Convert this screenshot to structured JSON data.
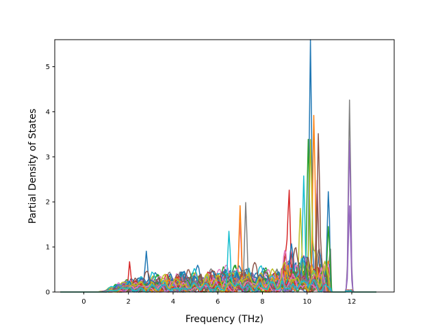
{
  "chart_data": {
    "type": "line",
    "title": "",
    "xlabel": "Frequency (THz)",
    "ylabel": "Partial Density of States",
    "xlim": [
      -1.3,
      13.9
    ],
    "ylim": [
      0,
      5.6
    ],
    "xticks": [
      0,
      2,
      4,
      6,
      8,
      10,
      12
    ],
    "yticks": [
      0,
      1,
      2,
      3,
      4,
      5
    ],
    "grid": false,
    "legend": "none",
    "series_count": 40,
    "colors": [
      "#1f77b4",
      "#ff7f0e",
      "#2ca02c",
      "#d62728",
      "#9467bd",
      "#8c564b",
      "#e377c2",
      "#7f7f7f",
      "#bcbd22",
      "#17becf"
    ],
    "peaks": [
      {
        "x": 10.15,
        "y": 5.4
      },
      {
        "x": 11.9,
        "y": 4.22
      },
      {
        "x": 11.9,
        "y": 3.32
      },
      {
        "x": 10.3,
        "y": 3.58
      },
      {
        "x": 10.15,
        "y": 3.15
      },
      {
        "x": 10.5,
        "y": 2.9
      },
      {
        "x": 10.05,
        "y": 2.65
      },
      {
        "x": 9.85,
        "y": 2.5
      },
      {
        "x": 10.45,
        "y": 2.3
      },
      {
        "x": 9.2,
        "y": 1.93
      },
      {
        "x": 10.95,
        "y": 1.9
      },
      {
        "x": 7.25,
        "y": 1.88
      },
      {
        "x": 11.9,
        "y": 1.88
      },
      {
        "x": 7.0,
        "y": 1.8
      },
      {
        "x": 9.7,
        "y": 1.7
      },
      {
        "x": 10.45,
        "y": 1.83
      },
      {
        "x": 10.95,
        "y": 1.2
      },
      {
        "x": 6.5,
        "y": 1.18
      },
      {
        "x": 7.0,
        "y": 1.3
      },
      {
        "x": 2.05,
        "y": 0.64
      },
      {
        "x": 2.8,
        "y": 0.7
      }
    ]
  }
}
